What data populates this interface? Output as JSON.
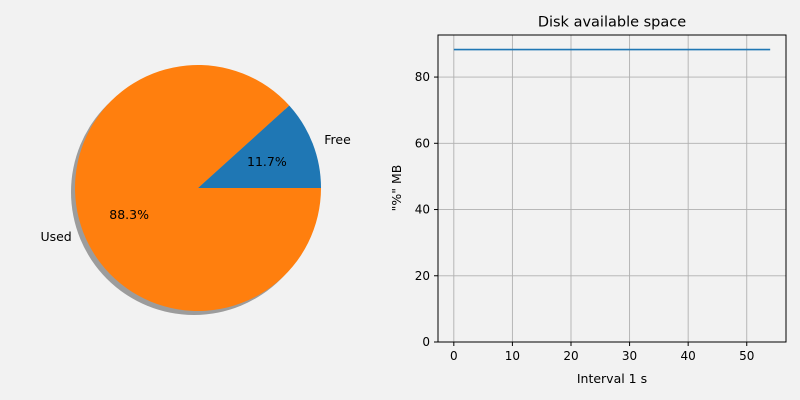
{
  "chart_data": [
    {
      "type": "pie",
      "title": "",
      "labels": [
        "Free",
        "Used"
      ],
      "values": [
        11.7,
        88.3
      ],
      "autopct": [
        "11.7%",
        "88.3%"
      ],
      "colors": [
        "#1f77b4",
        "#ff7f0e"
      ],
      "shadow": true,
      "start_angle_deg": 0
    },
    {
      "type": "line",
      "title": "Disk available space",
      "xlabel": "Interval 1 s",
      "ylabel": "\"%\" MB",
      "xlim": [
        -2.7,
        56.7
      ],
      "ylim": [
        0,
        92.7
      ],
      "xticks": [
        0,
        10,
        20,
        30,
        40,
        50
      ],
      "yticks": [
        0,
        20,
        40,
        60,
        80
      ],
      "grid": true,
      "series": [
        {
          "color": "#1f77b4",
          "x": [
            0,
            54
          ],
          "y": [
            88.3,
            88.3
          ]
        }
      ]
    }
  ]
}
